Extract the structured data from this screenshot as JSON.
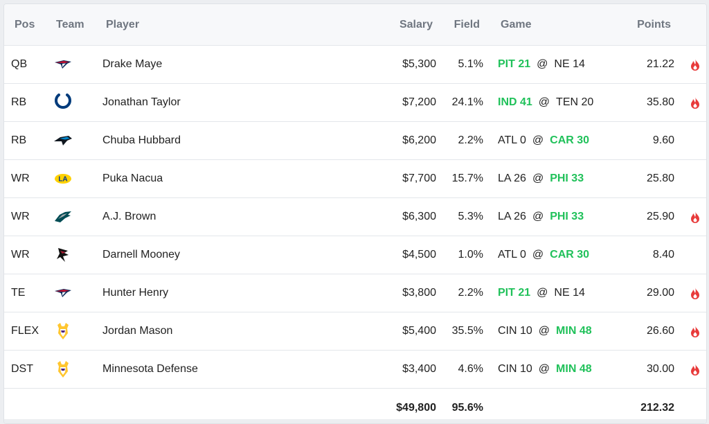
{
  "headers": {
    "pos": "Pos",
    "team": "Team",
    "player": "Player",
    "salary": "Salary",
    "field": "Field",
    "game": "Game",
    "points": "Points"
  },
  "rows": [
    {
      "pos": "QB",
      "team_icon": "patriots-logo-icon",
      "player": "Drake Maye",
      "salary": "$5,300",
      "field": "5.1%",
      "game_away": "PIT 21",
      "game_at": "@",
      "game_home": "NE 14",
      "winner": "away",
      "points": "21.22",
      "hot": true
    },
    {
      "pos": "RB",
      "team_icon": "colts-logo-icon",
      "player": "Jonathan Taylor",
      "salary": "$7,200",
      "field": "24.1%",
      "game_away": "IND 41",
      "game_at": "@",
      "game_home": "TEN 20",
      "winner": "away",
      "points": "35.80",
      "hot": true
    },
    {
      "pos": "RB",
      "team_icon": "panthers-logo-icon",
      "player": "Chuba Hubbard",
      "salary": "$6,200",
      "field": "2.2%",
      "game_away": "ATL 0",
      "game_at": "@",
      "game_home": "CAR 30",
      "winner": "home",
      "points": "9.60",
      "hot": false
    },
    {
      "pos": "WR",
      "team_icon": "rams-logo-icon",
      "player": "Puka Nacua",
      "salary": "$7,700",
      "field": "15.7%",
      "game_away": "LA 26",
      "game_at": "@",
      "game_home": "PHI 33",
      "winner": "home",
      "points": "25.80",
      "hot": false
    },
    {
      "pos": "WR",
      "team_icon": "eagles-logo-icon",
      "player": "A.J. Brown",
      "salary": "$6,300",
      "field": "5.3%",
      "game_away": "LA 26",
      "game_at": "@",
      "game_home": "PHI 33",
      "winner": "home",
      "points": "25.90",
      "hot": true
    },
    {
      "pos": "WR",
      "team_icon": "falcons-logo-icon",
      "player": "Darnell Mooney",
      "salary": "$4,500",
      "field": "1.0%",
      "game_away": "ATL 0",
      "game_at": "@",
      "game_home": "CAR 30",
      "winner": "home",
      "points": "8.40",
      "hot": false
    },
    {
      "pos": "TE",
      "team_icon": "patriots-logo-icon",
      "player": "Hunter Henry",
      "salary": "$3,800",
      "field": "2.2%",
      "game_away": "PIT 21",
      "game_at": "@",
      "game_home": "NE 14",
      "winner": "away",
      "points": "29.00",
      "hot": true
    },
    {
      "pos": "FLEX",
      "team_icon": "vikings-logo-icon",
      "player": "Jordan Mason",
      "salary": "$5,400",
      "field": "35.5%",
      "game_away": "CIN 10",
      "game_at": "@",
      "game_home": "MIN 48",
      "winner": "home",
      "points": "26.60",
      "hot": true
    },
    {
      "pos": "DST",
      "team_icon": "vikings-logo-icon",
      "player": "Minnesota Defense",
      "salary": "$3,400",
      "field": "4.6%",
      "game_away": "CIN 10",
      "game_at": "@",
      "game_home": "MIN 48",
      "winner": "home",
      "points": "30.00",
      "hot": true
    }
  ],
  "totals": {
    "salary": "$49,800",
    "field": "95.6%",
    "points": "212.32"
  },
  "colors": {
    "win": "#20c15a",
    "fire": "#e83a3a",
    "header_text": "#6f7680"
  }
}
